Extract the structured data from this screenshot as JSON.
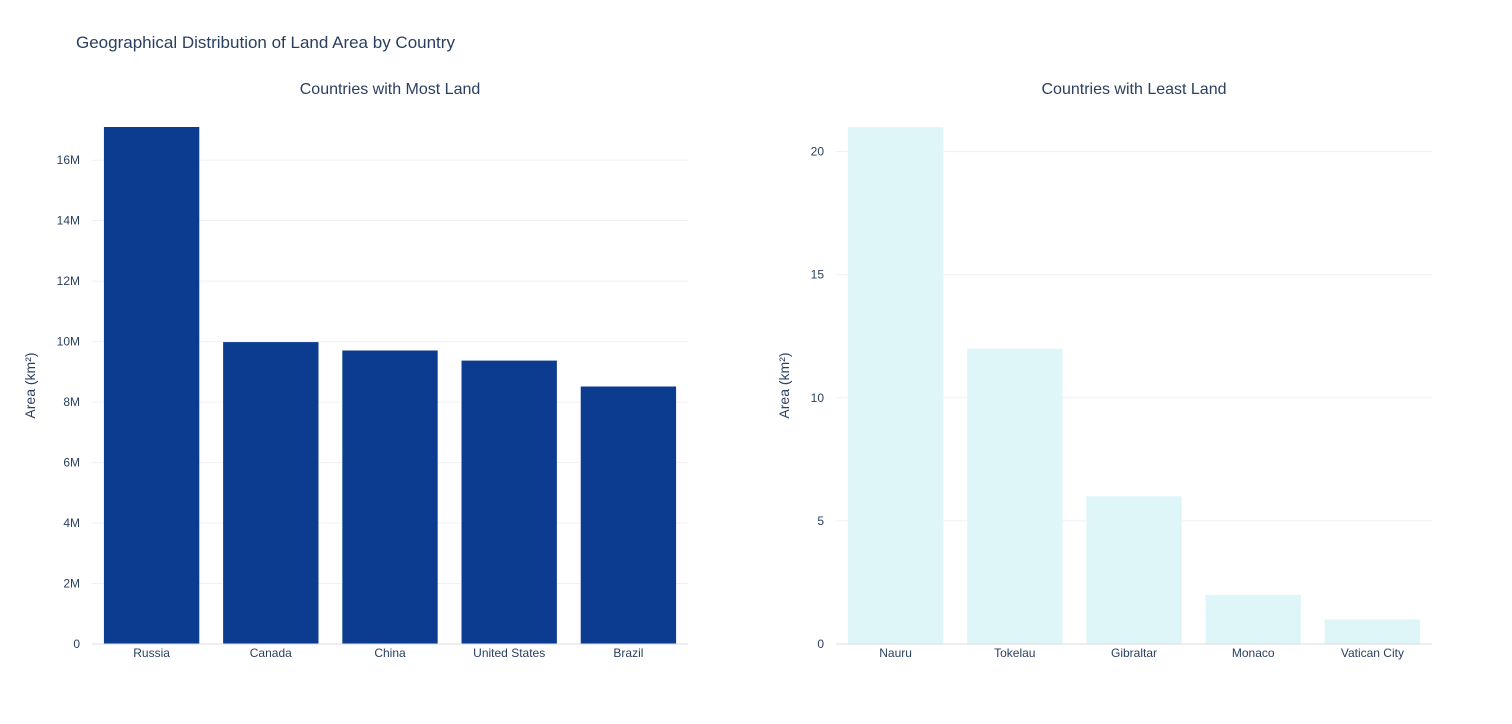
{
  "figure": {
    "title": "Geographical Distribution of Land Area by Country"
  },
  "colors": {
    "grid": "#eef0f4",
    "axis_line": "#d8dde6"
  },
  "chart_data": [
    {
      "type": "bar",
      "title": "Countries with Most Land",
      "categories": [
        "Russia",
        "Canada",
        "China",
        "United States",
        "Brazil"
      ],
      "values": [
        17098242,
        9984670,
        9706961,
        9372610,
        8515767
      ],
      "xlabel": "",
      "ylabel": "Area (km²)",
      "ylim": [
        0,
        17098242
      ],
      "yticks": [
        0,
        2000000,
        4000000,
        6000000,
        8000000,
        10000000,
        12000000,
        14000000,
        16000000
      ],
      "ytick_labels": [
        "0",
        "2M",
        "4M",
        "6M",
        "8M",
        "10M",
        "12M",
        "14M",
        "16M"
      ],
      "bar_color": "#0c3c8f",
      "grid": true
    },
    {
      "type": "bar",
      "title": "Countries with Least Land",
      "categories": [
        "Nauru",
        "Tokelau",
        "Gibraltar",
        "Monaco",
        "Vatican City"
      ],
      "values": [
        21,
        12,
        6,
        2,
        1
      ],
      "xlabel": "",
      "ylabel": "Area (km²)",
      "ylim": [
        0,
        21
      ],
      "yticks": [
        0,
        5,
        10,
        15,
        20
      ],
      "ytick_labels": [
        "0",
        "5",
        "10",
        "15",
        "20"
      ],
      "bar_color": "#dff6f8",
      "grid": true
    }
  ]
}
